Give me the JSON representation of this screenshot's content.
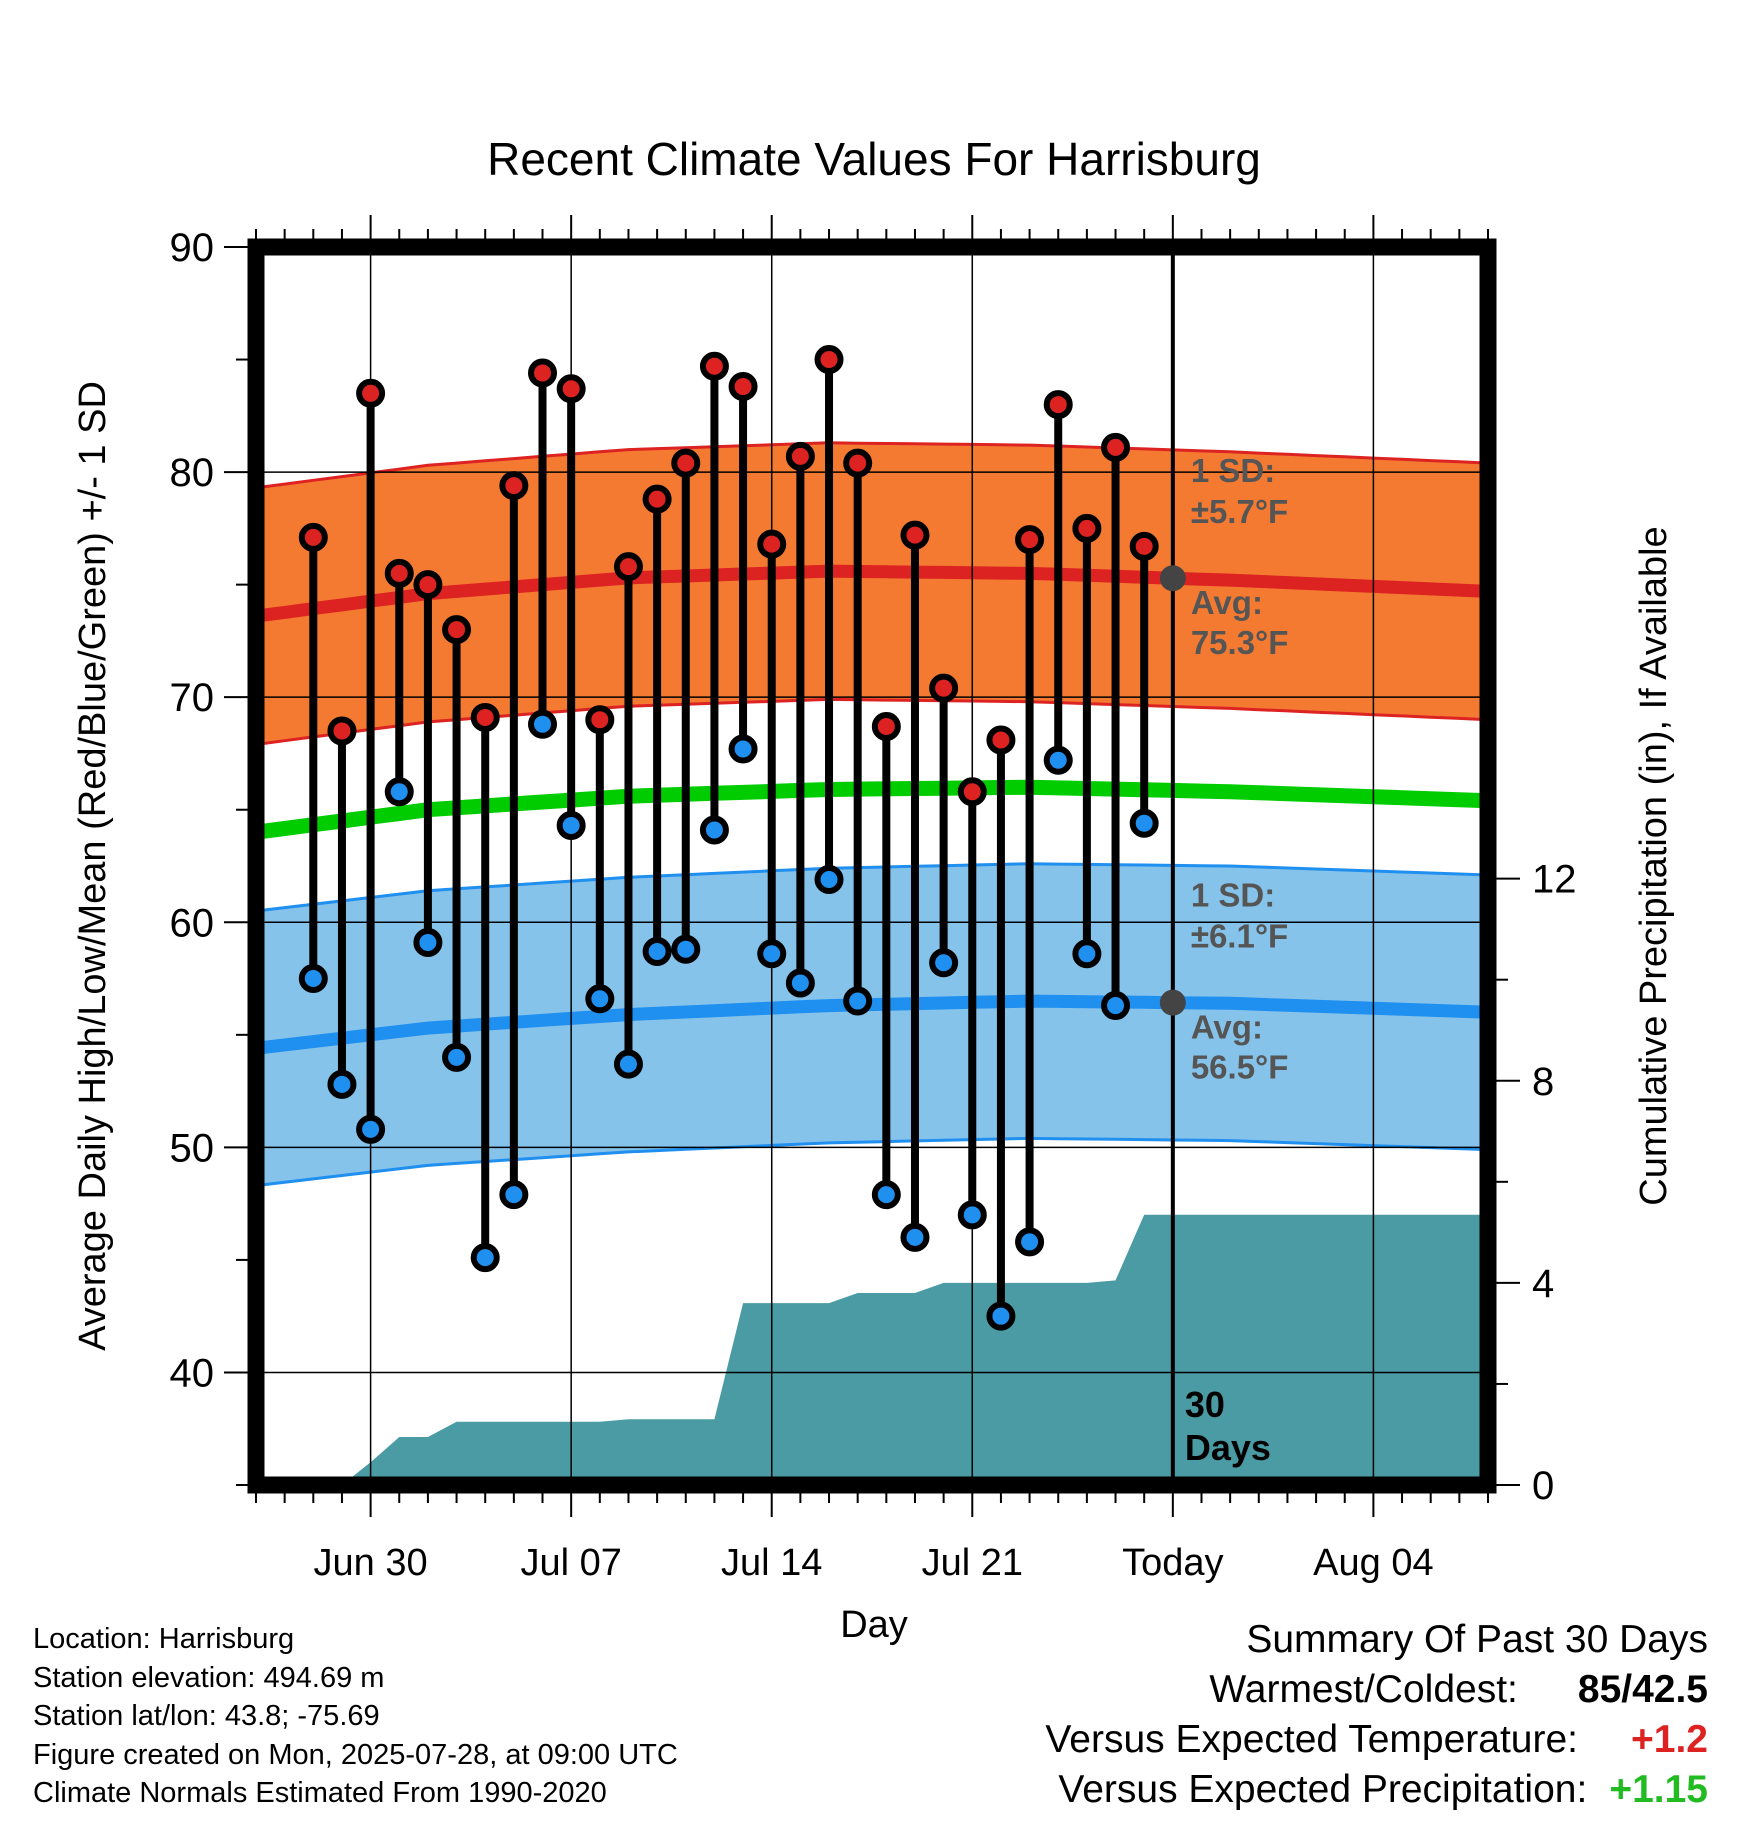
{
  "chart_data": {
    "type": "line",
    "title": "Recent Climate Values For Harrisburg",
    "xlabel": "Day",
    "ylabel": "Average Daily High/Low/Mean (Red/Blue/Green) +/- 1 SD",
    "y2label": "Cumulative Precipitation (in), If Available",
    "ylim": [
      35,
      90
    ],
    "y2lim": [
      0,
      24.5
    ],
    "xlim": [
      "2025-06-26",
      "2025-08-08"
    ],
    "yticks": [
      40,
      50,
      60,
      70,
      80,
      90
    ],
    "y2ticks": [
      0,
      4,
      8,
      12
    ],
    "xtick_labels": [
      "Jun 30",
      "Jul 07",
      "Jul 14",
      "Jul 21",
      "Today",
      "Aug 04"
    ],
    "xtick_dates": [
      "2025-06-30",
      "2025-07-07",
      "2025-07-14",
      "2025-07-21",
      "2025-07-28",
      "2025-08-04"
    ],
    "grid": true,
    "colors": {
      "high": "#dd2222",
      "low": "#1f8ff0",
      "mean": "#00cc00",
      "high_band": "#f47a32",
      "low_band": "#86c3ea",
      "precip": "#4a9ba4"
    },
    "daily": {
      "dates": [
        "2025-06-28",
        "2025-06-29",
        "2025-06-30",
        "2025-07-01",
        "2025-07-02",
        "2025-07-03",
        "2025-07-04",
        "2025-07-05",
        "2025-07-06",
        "2025-07-07",
        "2025-07-08",
        "2025-07-09",
        "2025-07-10",
        "2025-07-11",
        "2025-07-12",
        "2025-07-13",
        "2025-07-14",
        "2025-07-15",
        "2025-07-16",
        "2025-07-17",
        "2025-07-18",
        "2025-07-19",
        "2025-07-20",
        "2025-07-21",
        "2025-07-22",
        "2025-07-23",
        "2025-07-24",
        "2025-07-25",
        "2025-07-26",
        "2025-07-27"
      ],
      "high": [
        77.1,
        68.5,
        83.5,
        75.5,
        75.0,
        73.0,
        69.1,
        79.4,
        84.4,
        83.7,
        69.0,
        75.8,
        78.8,
        80.4,
        84.7,
        83.8,
        76.8,
        80.7,
        85.0,
        80.4,
        68.7,
        77.2,
        70.4,
        65.8,
        68.1,
        77.0,
        83.0,
        77.5,
        81.1,
        76.7
      ],
      "low": [
        57.5,
        52.8,
        50.8,
        65.8,
        59.1,
        54.0,
        45.1,
        47.9,
        68.8,
        64.3,
        56.6,
        53.7,
        58.7,
        58.8,
        64.1,
        67.7,
        58.6,
        57.3,
        61.9,
        56.5,
        47.9,
        46.0,
        58.2,
        47.0,
        42.5,
        45.8,
        67.2,
        58.6,
        56.3,
        64.4
      ]
    },
    "normals": {
      "dates": [
        "2025-06-26",
        "2025-07-02",
        "2025-07-09",
        "2025-07-16",
        "2025-07-23",
        "2025-07-30",
        "2025-08-08"
      ],
      "avg_high": [
        73.6,
        74.6,
        75.3,
        75.6,
        75.5,
        75.2,
        74.7
      ],
      "avg_high_sd": 5.7,
      "avg_low": [
        54.4,
        55.3,
        55.9,
        56.3,
        56.5,
        56.4,
        56.0
      ],
      "avg_low_sd": 6.1,
      "avg_mean": [
        64.0,
        65.0,
        65.6,
        65.9,
        66.0,
        65.8,
        65.4
      ]
    },
    "precip_cumulative": {
      "dates": [
        "2025-06-28",
        "2025-06-29",
        "2025-06-30",
        "2025-07-01",
        "2025-07-02",
        "2025-07-03",
        "2025-07-04",
        "2025-07-05",
        "2025-07-06",
        "2025-07-07",
        "2025-07-08",
        "2025-07-09",
        "2025-07-10",
        "2025-07-11",
        "2025-07-12",
        "2025-07-13",
        "2025-07-14",
        "2025-07-15",
        "2025-07-16",
        "2025-07-17",
        "2025-07-18",
        "2025-07-19",
        "2025-07-20",
        "2025-07-21",
        "2025-07-22",
        "2025-07-23",
        "2025-07-24",
        "2025-07-25",
        "2025-07-26",
        "2025-07-27",
        "2025-07-28",
        "2025-08-08"
      ],
      "values": [
        0.0,
        0.0,
        0.45,
        0.95,
        0.95,
        1.25,
        1.25,
        1.25,
        1.25,
        1.25,
        1.25,
        1.3,
        1.3,
        1.3,
        1.3,
        3.6,
        3.6,
        3.6,
        3.6,
        3.8,
        3.8,
        3.8,
        4.0,
        4.0,
        4.0,
        4.0,
        4.0,
        4.0,
        4.05,
        5.35,
        5.35,
        5.35
      ]
    },
    "annotations": {
      "high_sd_line1": "1 SD:",
      "high_sd_line2": "±5.7°F",
      "high_avg_line1": "Avg:",
      "high_avg_line2": "75.3°F",
      "low_sd_line1": "1 SD:",
      "low_sd_line2": "±6.1°F",
      "low_avg_line1": "Avg:",
      "low_avg_line2": "56.5°F",
      "days_line1": "30",
      "days_line2": "Days",
      "today": "2025-07-28"
    }
  },
  "footer": {
    "location": "Location: Harrisburg",
    "elevation": "Station elevation: 494.69 m",
    "latlon": "Station lat/lon: 43.8; -75.69",
    "created": "Figure created on Mon, 2025-07-28, at 09:00 UTC",
    "normals": "Climate Normals Estimated From 1990-2020"
  },
  "summary": {
    "title": "Summary Of Past 30 Days",
    "warmest_label": "Warmest/Coldest:",
    "warmest_value": "85/42.5",
    "temp_label": "Versus Expected Temperature:",
    "temp_value": "+1.2",
    "temp_color": "#dd2222",
    "precip_label": "Versus Expected Precipitation:",
    "precip_value": "+1.15",
    "precip_color": "#22bb22"
  }
}
